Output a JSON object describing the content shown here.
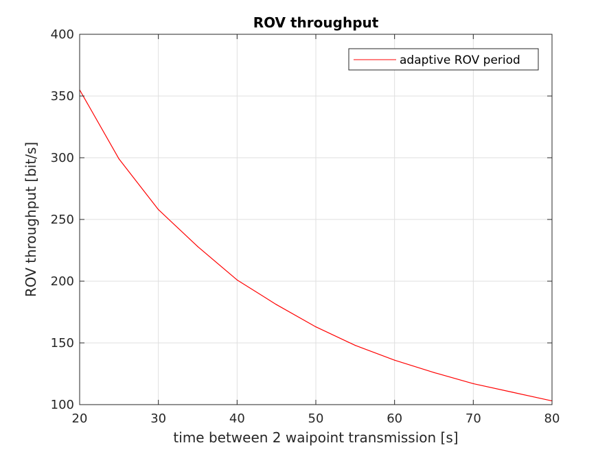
{
  "chart_data": {
    "type": "line",
    "title": "ROV throughput",
    "xlabel": "time between 2 waipoint transmission [s]",
    "ylabel": "ROV throughput [bit/s]",
    "xlim": [
      20,
      80
    ],
    "ylim": [
      100,
      400
    ],
    "xticks": [
      20,
      30,
      40,
      50,
      60,
      70,
      80
    ],
    "yticks": [
      100,
      150,
      200,
      250,
      300,
      350,
      400
    ],
    "grid": true,
    "legend_position": "top-right",
    "series": [
      {
        "name": "adaptive ROV period",
        "color": "#ff0000",
        "x": [
          20,
          25,
          30,
          35,
          40,
          45,
          50,
          55,
          60,
          65,
          70,
          75,
          80
        ],
        "y": [
          355,
          299,
          258,
          228,
          201,
          181,
          163,
          148,
          136,
          126,
          117,
          110,
          103
        ]
      }
    ]
  }
}
